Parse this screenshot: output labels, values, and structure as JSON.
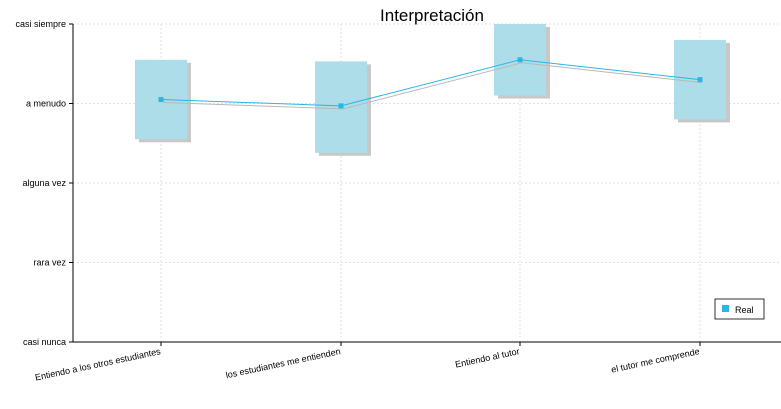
{
  "chart_data": {
    "type": "box",
    "title": "Interpretación",
    "categories": [
      "Entiendo a los otros estudiantes",
      "los estudiantes me entienden",
      "Entiendo al tutor",
      "el tutor me comprende"
    ],
    "y_tick_labels": [
      "casi nunca",
      "rara vez",
      "alguna vez",
      "a menudo",
      "casi siempre"
    ],
    "ylim": [
      1,
      5
    ],
    "grid": true,
    "legend_position": "bottom-right",
    "series": [
      {
        "name": "Real",
        "values": [
          4.05,
          3.97,
          4.55,
          4.3
        ]
      }
    ],
    "boxes": [
      {
        "low": 3.55,
        "high": 4.55
      },
      {
        "low": 3.38,
        "high": 4.53
      },
      {
        "low": 4.1,
        "high": 5.0
      },
      {
        "low": 3.8,
        "high": 4.8
      }
    ],
    "colors": {
      "box": "#acdde9",
      "box_shadow": "#c8c8c8",
      "line": "#29b6e6",
      "shadow_line": "#b9b9b9",
      "grid": "#e2e2e2",
      "legend_marker": "#29b6e6"
    }
  }
}
